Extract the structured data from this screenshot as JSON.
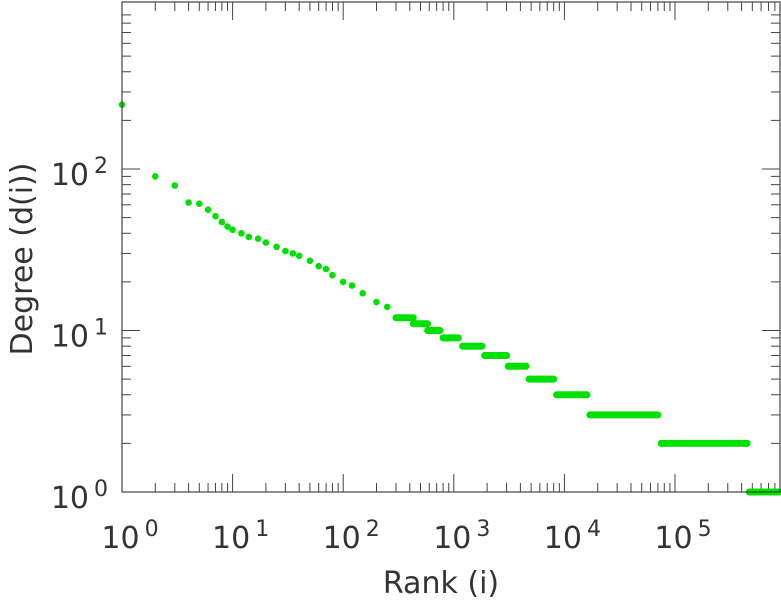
{
  "chart_data": {
    "type": "scatter",
    "title": "",
    "xlabel": "Rank (i)",
    "ylabel": "Degree (d(i))",
    "x_scale": "log",
    "y_scale": "log",
    "xlim": [
      1,
      1000000
    ],
    "ylim": [
      1,
      1000
    ],
    "grid": false,
    "marker_color": "#00e000",
    "x_ticks": [
      {
        "base": "10",
        "exp": "0",
        "value": 1
      },
      {
        "base": "10",
        "exp": "1",
        "value": 10
      },
      {
        "base": "10",
        "exp": "2",
        "value": 100
      },
      {
        "base": "10",
        "exp": "3",
        "value": 1000
      },
      {
        "base": "10",
        "exp": "4",
        "value": 10000
      },
      {
        "base": "10",
        "exp": "5",
        "value": 100000
      }
    ],
    "y_ticks": [
      {
        "base": "10",
        "exp": "0",
        "value": 1
      },
      {
        "base": "10",
        "exp": "1",
        "value": 10
      },
      {
        "base": "10",
        "exp": "2",
        "value": 100
      }
    ],
    "series": [
      {
        "points": [
          {
            "x": 1,
            "y": 250
          },
          {
            "x": 2,
            "y": 90
          },
          {
            "x": 3,
            "y": 79
          },
          {
            "x": 4,
            "y": 62
          },
          {
            "x": 5,
            "y": 61
          },
          {
            "x": 6,
            "y": 56
          },
          {
            "x": 7,
            "y": 51
          },
          {
            "x": 8,
            "y": 47
          },
          {
            "x": 9,
            "y": 44
          },
          {
            "x": 10,
            "y": 42
          },
          {
            "x": 12,
            "y": 40
          },
          {
            "x": 14,
            "y": 38
          },
          {
            "x": 17,
            "y": 37
          },
          {
            "x": 20,
            "y": 35
          },
          {
            "x": 25,
            "y": 33
          },
          {
            "x": 30,
            "y": 31
          },
          {
            "x": 35,
            "y": 30
          },
          {
            "x": 40,
            "y": 29
          },
          {
            "x": 50,
            "y": 27
          },
          {
            "x": 60,
            "y": 25
          },
          {
            "x": 70,
            "y": 24
          },
          {
            "x": 80,
            "y": 22
          },
          {
            "x": 100,
            "y": 20
          },
          {
            "x": 120,
            "y": 19
          },
          {
            "x": 150,
            "y": 17
          },
          {
            "x": 200,
            "y": 15
          },
          {
            "x": 250,
            "y": 14
          },
          {
            "x": 300,
            "y": 12
          }
        ],
        "plateaus": [
          {
            "y": 12,
            "x_from": 300,
            "x_to": 430
          },
          {
            "y": 11,
            "x_from": 430,
            "x_to": 580
          },
          {
            "y": 10,
            "x_from": 580,
            "x_to": 750
          },
          {
            "y": 9,
            "x_from": 800,
            "x_to": 1100
          },
          {
            "y": 8,
            "x_from": 1200,
            "x_to": 1800
          },
          {
            "y": 7,
            "x_from": 1900,
            "x_to": 3000
          },
          {
            "y": 6,
            "x_from": 3100,
            "x_to": 4500
          },
          {
            "y": 5,
            "x_from": 4800,
            "x_to": 8000
          },
          {
            "y": 4,
            "x_from": 8500,
            "x_to": 16000
          },
          {
            "y": 3,
            "x_from": 17000,
            "x_to": 70000
          },
          {
            "y": 2,
            "x_from": 75000,
            "x_to": 450000
          },
          {
            "y": 1,
            "x_from": 470000,
            "x_to": 900000
          }
        ]
      }
    ]
  }
}
